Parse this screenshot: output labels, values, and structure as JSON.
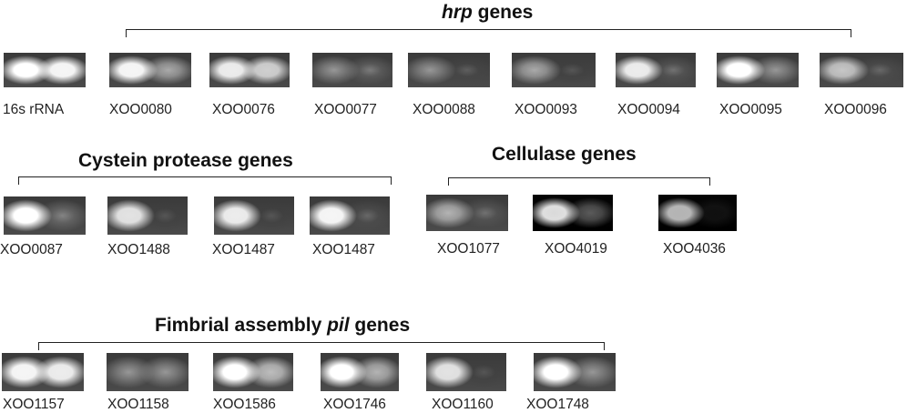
{
  "groups": {
    "hrp": {
      "title_main": "hrp",
      "title_rest": " genes"
    },
    "cystein": {
      "title": "Cystein protease genes"
    },
    "cellulase": {
      "title": "Cellulase genes"
    },
    "fimbrial": {
      "title_pre": "Fimbrial assembly ",
      "title_italic": "pil",
      "title_post": " genes"
    }
  },
  "labels": {
    "row1": [
      "16s rRNA",
      "XOO0080",
      "XOO0076",
      "XOO0077",
      "XOO0088",
      "XOO0093",
      "XOO0094",
      "XOO0095",
      "XOO0096"
    ],
    "row2a": [
      "XOO0087",
      "XOO1488",
      "XOO1487",
      "XOO1487"
    ],
    "row2b": [
      "XOO1077",
      "XOO4019",
      "XOO4036"
    ],
    "row3": [
      "XOO1157",
      "XOO1158",
      "XOO1586",
      "XOO1746",
      "XOO1160",
      "XOO1748"
    ]
  },
  "band_intensity": {
    "note_units": "relative brightness 0-1 per lane (left lane, right lane)",
    "row1": [
      [
        1.0,
        0.95
      ],
      [
        0.95,
        0.55
      ],
      [
        0.9,
        0.75
      ],
      [
        0.45,
        0.3
      ],
      [
        0.45,
        0.15
      ],
      [
        0.55,
        0.1
      ],
      [
        0.9,
        0.25
      ],
      [
        1.0,
        0.45
      ],
      [
        0.7,
        0.2
      ]
    ],
    "row2a": [
      [
        1.0,
        0.35
      ],
      [
        0.85,
        0.1
      ],
      [
        0.9,
        0.1
      ],
      [
        0.95,
        0.2
      ]
    ],
    "row2b": [
      [
        0.6,
        0.25
      ],
      [
        0.85,
        0.35
      ],
      [
        0.7,
        0.05
      ]
    ],
    "row3": [
      [
        0.95,
        0.9
      ],
      [
        0.45,
        0.45
      ],
      [
        1.0,
        0.65
      ],
      [
        1.0,
        0.6
      ],
      [
        0.85,
        0.1
      ],
      [
        1.0,
        0.45
      ]
    ]
  },
  "colors": {
    "text": "#111111",
    "bracket": "#222222"
  }
}
